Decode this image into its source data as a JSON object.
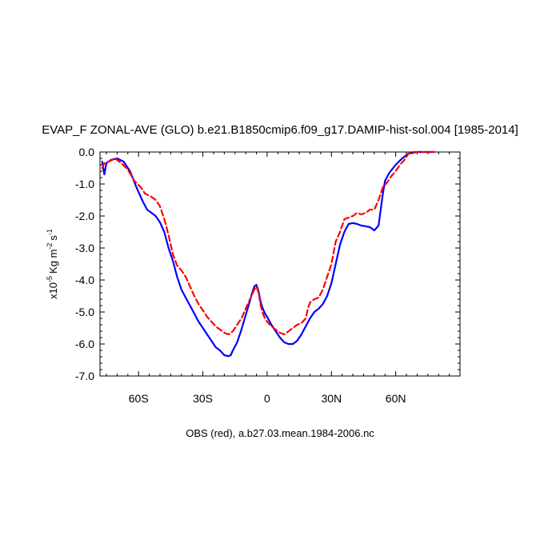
{
  "chart_data": {
    "type": "line",
    "title": "EVAP_F ZONAL-AVE (GLO) b.e21.B1850cmip6.f09_g17.DAMIP-hist-sol.004 [1985-2014]",
    "ylabel": {
      "base": "x10",
      "exp": "-5",
      "unit": "Kg m",
      "unit_exp": "-2",
      "tail": "s",
      "tail_exp": "-1"
    },
    "caption": "OBS (red), a.b27.03.mean.1984-2006.nc",
    "xlim": [
      -78,
      90
    ],
    "ylim": [
      -7.0,
      0.0
    ],
    "x_ticks": [
      {
        "value": -60,
        "label": "60S"
      },
      {
        "value": -30,
        "label": "30S"
      },
      {
        "value": 0,
        "label": "0"
      },
      {
        "value": 30,
        "label": "30N"
      },
      {
        "value": 60,
        "label": "60N"
      }
    ],
    "y_ticks": [
      {
        "value": 0,
        "label": "0.0"
      },
      {
        "value": -1,
        "label": "-1.0"
      },
      {
        "value": -2,
        "label": "-2.0"
      },
      {
        "value": -3,
        "label": "-3.0"
      },
      {
        "value": -4,
        "label": "-4.0"
      },
      {
        "value": -5,
        "label": "-5.0"
      },
      {
        "value": -6,
        "label": "-6.0"
      },
      {
        "value": -7,
        "label": "-7.0"
      }
    ],
    "series": [
      {
        "color": "#0000ff",
        "dash": "solid",
        "points": [
          [
            -77,
            -0.3
          ],
          [
            -76,
            -0.7
          ],
          [
            -75,
            -0.35
          ],
          [
            -73,
            -0.25
          ],
          [
            -70,
            -0.2
          ],
          [
            -67,
            -0.3
          ],
          [
            -64,
            -0.6
          ],
          [
            -61,
            -1.1
          ],
          [
            -58,
            -1.55
          ],
          [
            -56,
            -1.8
          ],
          [
            -54,
            -1.9
          ],
          [
            -52,
            -2.0
          ],
          [
            -50,
            -2.2
          ],
          [
            -48,
            -2.5
          ],
          [
            -46,
            -3.0
          ],
          [
            -44,
            -3.4
          ],
          [
            -42,
            -3.9
          ],
          [
            -40,
            -4.3
          ],
          [
            -38,
            -4.55
          ],
          [
            -36,
            -4.8
          ],
          [
            -34,
            -5.05
          ],
          [
            -32,
            -5.3
          ],
          [
            -30,
            -5.5
          ],
          [
            -28,
            -5.7
          ],
          [
            -26,
            -5.9
          ],
          [
            -24,
            -6.1
          ],
          [
            -22,
            -6.2
          ],
          [
            -20,
            -6.35
          ],
          [
            -18,
            -6.38
          ],
          [
            -17,
            -6.35
          ],
          [
            -16,
            -6.2
          ],
          [
            -14,
            -5.95
          ],
          [
            -12,
            -5.55
          ],
          [
            -10,
            -5.1
          ],
          [
            -8,
            -4.65
          ],
          [
            -7,
            -4.4
          ],
          [
            -6,
            -4.2
          ],
          [
            -5,
            -4.15
          ],
          [
            -4,
            -4.35
          ],
          [
            -3,
            -4.7
          ],
          [
            -2,
            -4.9
          ],
          [
            -1,
            -5.05
          ],
          [
            0,
            -5.15
          ],
          [
            2,
            -5.4
          ],
          [
            4,
            -5.6
          ],
          [
            6,
            -5.8
          ],
          [
            8,
            -5.95
          ],
          [
            10,
            -6.0
          ],
          [
            12,
            -6.0
          ],
          [
            14,
            -5.9
          ],
          [
            16,
            -5.7
          ],
          [
            18,
            -5.45
          ],
          [
            20,
            -5.2
          ],
          [
            22,
            -5.0
          ],
          [
            24,
            -4.9
          ],
          [
            26,
            -4.75
          ],
          [
            28,
            -4.5
          ],
          [
            30,
            -4.1
          ],
          [
            32,
            -3.5
          ],
          [
            34,
            -2.9
          ],
          [
            36,
            -2.5
          ],
          [
            38,
            -2.25
          ],
          [
            40,
            -2.22
          ],
          [
            42,
            -2.25
          ],
          [
            44,
            -2.3
          ],
          [
            46,
            -2.32
          ],
          [
            48,
            -2.35
          ],
          [
            50,
            -2.45
          ],
          [
            52,
            -2.3
          ],
          [
            53,
            -1.8
          ],
          [
            54,
            -1.3
          ],
          [
            55,
            -0.9
          ],
          [
            57,
            -0.65
          ],
          [
            60,
            -0.4
          ],
          [
            63,
            -0.2
          ],
          [
            66,
            -0.05
          ],
          [
            70,
            0.0
          ],
          [
            78,
            0.0
          ]
        ]
      },
      {
        "color": "#ff0000",
        "dash": "dashed",
        "points": [
          [
            -77,
            -0.5
          ],
          [
            -76,
            -0.35
          ],
          [
            -74,
            -0.3
          ],
          [
            -71,
            -0.2
          ],
          [
            -68,
            -0.35
          ],
          [
            -65,
            -0.55
          ],
          [
            -62,
            -0.9
          ],
          [
            -59,
            -1.1
          ],
          [
            -57,
            -1.3
          ],
          [
            -54,
            -1.4
          ],
          [
            -52,
            -1.5
          ],
          [
            -50,
            -1.7
          ],
          [
            -48,
            -2.1
          ],
          [
            -46,
            -2.6
          ],
          [
            -44,
            -3.2
          ],
          [
            -42,
            -3.55
          ],
          [
            -40,
            -3.7
          ],
          [
            -38,
            -3.9
          ],
          [
            -36,
            -4.2
          ],
          [
            -34,
            -4.5
          ],
          [
            -32,
            -4.75
          ],
          [
            -30,
            -4.95
          ],
          [
            -28,
            -5.15
          ],
          [
            -26,
            -5.3
          ],
          [
            -24,
            -5.45
          ],
          [
            -22,
            -5.55
          ],
          [
            -20,
            -5.65
          ],
          [
            -18,
            -5.7
          ],
          [
            -16,
            -5.6
          ],
          [
            -14,
            -5.4
          ],
          [
            -12,
            -5.2
          ],
          [
            -10,
            -4.9
          ],
          [
            -8,
            -4.6
          ],
          [
            -6,
            -4.3
          ],
          [
            -5,
            -4.2
          ],
          [
            -4,
            -4.4
          ],
          [
            -3,
            -4.8
          ],
          [
            -2,
            -5.05
          ],
          [
            -1,
            -5.2
          ],
          [
            0,
            -5.3
          ],
          [
            2,
            -5.45
          ],
          [
            4,
            -5.55
          ],
          [
            6,
            -5.65
          ],
          [
            8,
            -5.7
          ],
          [
            10,
            -5.6
          ],
          [
            12,
            -5.5
          ],
          [
            14,
            -5.4
          ],
          [
            16,
            -5.35
          ],
          [
            18,
            -5.2
          ],
          [
            19,
            -4.9
          ],
          [
            20,
            -4.7
          ],
          [
            22,
            -4.6
          ],
          [
            24,
            -4.55
          ],
          [
            26,
            -4.3
          ],
          [
            28,
            -3.9
          ],
          [
            30,
            -3.5
          ],
          [
            32,
            -2.8
          ],
          [
            34,
            -2.5
          ],
          [
            36,
            -2.1
          ],
          [
            38,
            -2.05
          ],
          [
            40,
            -2.0
          ],
          [
            42,
            -1.9
          ],
          [
            44,
            -1.95
          ],
          [
            46,
            -1.9
          ],
          [
            48,
            -1.8
          ],
          [
            50,
            -1.8
          ],
          [
            52,
            -1.5
          ],
          [
            54,
            -1.1
          ],
          [
            56,
            -0.95
          ],
          [
            58,
            -0.75
          ],
          [
            60,
            -0.6
          ],
          [
            62,
            -0.4
          ],
          [
            64,
            -0.25
          ],
          [
            66,
            -0.05
          ],
          [
            68,
            0.0
          ],
          [
            78,
            0.0
          ]
        ]
      }
    ]
  }
}
